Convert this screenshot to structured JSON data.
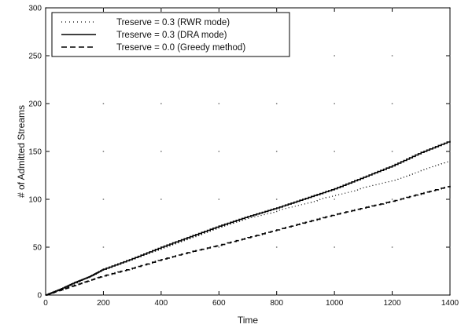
{
  "chart_data": {
    "type": "line",
    "xlabel": "Time",
    "ylabel": "# of Admitted Streams",
    "xlim": [
      0,
      1400
    ],
    "ylim": [
      0,
      300
    ],
    "xticks": [
      0,
      200,
      400,
      600,
      800,
      1000,
      1200,
      1400
    ],
    "yticks": [
      0,
      50,
      100,
      150,
      200,
      250,
      300
    ],
    "grid": "dotted points at tick intersections",
    "legend_position": "top-left",
    "series": [
      {
        "name": "Treserve = 0.3 (RWR mode)",
        "style": "dotted",
        "x": [
          0,
          50,
          100,
          150,
          200,
          300,
          400,
          500,
          600,
          700,
          800,
          900,
          1000,
          1100,
          1200,
          1300,
          1400
        ],
        "y": [
          0,
          6,
          12,
          19,
          26,
          38,
          49,
          60,
          70,
          80,
          88,
          96,
          104,
          112,
          120,
          130,
          140
        ]
      },
      {
        "name": "Treserve = 0.3 (DRA mode)",
        "style": "solid",
        "x": [
          0,
          50,
          100,
          150,
          200,
          300,
          400,
          500,
          600,
          700,
          800,
          900,
          1000,
          1100,
          1200,
          1300,
          1400
        ],
        "y": [
          0,
          6,
          13,
          19,
          27,
          38,
          50,
          61,
          72,
          82,
          91,
          101,
          111,
          123,
          135,
          149,
          161
        ]
      },
      {
        "name": "Treserve = 0.0 (Greedy method)",
        "style": "dashed",
        "x": [
          0,
          50,
          100,
          150,
          200,
          300,
          400,
          500,
          600,
          700,
          800,
          900,
          1000,
          1100,
          1200,
          1300,
          1400
        ],
        "y": [
          0,
          5,
          10,
          15,
          20,
          28,
          37,
          45,
          52,
          60,
          68,
          76,
          84,
          91,
          98,
          106,
          114
        ]
      }
    ]
  }
}
